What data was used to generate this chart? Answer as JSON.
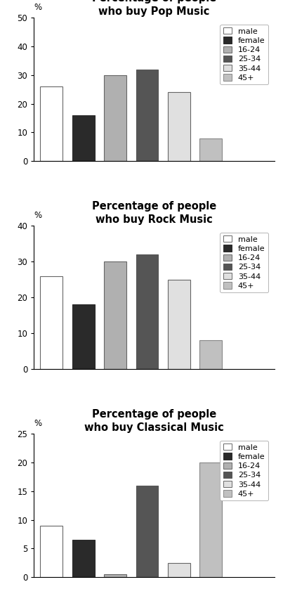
{
  "charts": [
    {
      "title": "Percentage of people\nwho buy Pop Music",
      "ylim": [
        0,
        50
      ],
      "yticks": [
        0,
        10,
        20,
        30,
        40,
        50
      ],
      "bars": [
        {
          "label": "male",
          "value": 26,
          "color": "#ffffff",
          "edgecolor": "#666666"
        },
        {
          "label": "female",
          "value": 16,
          "color": "#2a2a2a",
          "edgecolor": "#2a2a2a"
        },
        {
          "label": "16-24",
          "value": 30,
          "color": "#b0b0b0",
          "edgecolor": "#666666"
        },
        {
          "label": "25-34",
          "value": 32,
          "color": "#555555",
          "edgecolor": "#555555"
        },
        {
          "label": "35-44",
          "value": 24,
          "color": "#e0e0e0",
          "edgecolor": "#666666"
        },
        {
          "label": "45+",
          "value": 8,
          "color": "#c0c0c0",
          "edgecolor": "#888888"
        }
      ]
    },
    {
      "title": "Percentage of people\nwho buy Rock Music",
      "ylim": [
        0,
        40
      ],
      "yticks": [
        0,
        10,
        20,
        30,
        40
      ],
      "bars": [
        {
          "label": "male",
          "value": 26,
          "color": "#ffffff",
          "edgecolor": "#666666"
        },
        {
          "label": "female",
          "value": 18,
          "color": "#2a2a2a",
          "edgecolor": "#2a2a2a"
        },
        {
          "label": "16-24",
          "value": 30,
          "color": "#b0b0b0",
          "edgecolor": "#666666"
        },
        {
          "label": "25-34",
          "value": 32,
          "color": "#555555",
          "edgecolor": "#555555"
        },
        {
          "label": "35-44",
          "value": 25,
          "color": "#e0e0e0",
          "edgecolor": "#666666"
        },
        {
          "label": "45+",
          "value": 8,
          "color": "#c0c0c0",
          "edgecolor": "#888888"
        }
      ]
    },
    {
      "title": "Percentage of people\nwho buy Classical Music",
      "ylim": [
        0,
        25
      ],
      "yticks": [
        0,
        5,
        10,
        15,
        20,
        25
      ],
      "bars": [
        {
          "label": "male",
          "value": 9,
          "color": "#ffffff",
          "edgecolor": "#666666"
        },
        {
          "label": "female",
          "value": 6.5,
          "color": "#2a2a2a",
          "edgecolor": "#2a2a2a"
        },
        {
          "label": "16-24",
          "value": 0.5,
          "color": "#b0b0b0",
          "edgecolor": "#666666"
        },
        {
          "label": "25-34",
          "value": 16,
          "color": "#555555",
          "edgecolor": "#555555"
        },
        {
          "label": "35-44",
          "value": 2.5,
          "color": "#e0e0e0",
          "edgecolor": "#666666"
        },
        {
          "label": "45+",
          "value": 20,
          "color": "#c0c0c0",
          "edgecolor": "#888888"
        }
      ]
    }
  ],
  "legend_labels": [
    "male",
    "female",
    "16-24",
    "25-34",
    "35-44",
    "45+"
  ],
  "legend_colors": [
    "#ffffff",
    "#2a2a2a",
    "#b0b0b0",
    "#555555",
    "#e0e0e0",
    "#c0c0c0"
  ],
  "legend_edgecolors": [
    "#666666",
    "#2a2a2a",
    "#666666",
    "#555555",
    "#666666",
    "#888888"
  ],
  "bar_width": 0.7,
  "background_color": "#ffffff",
  "title_fontsize": 10.5,
  "tick_fontsize": 8.5,
  "legend_fontsize": 8
}
